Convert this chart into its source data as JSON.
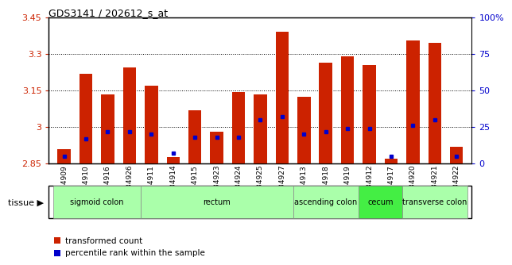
{
  "title": "GDS3141 / 202612_s_at",
  "samples": [
    "GSM234909",
    "GSM234910",
    "GSM234916",
    "GSM234926",
    "GSM234911",
    "GSM234914",
    "GSM234915",
    "GSM234923",
    "GSM234924",
    "GSM234925",
    "GSM234927",
    "GSM234913",
    "GSM234918",
    "GSM234919",
    "GSM234912",
    "GSM234917",
    "GSM234920",
    "GSM234921",
    "GSM234922"
  ],
  "transformed_count": [
    2.91,
    3.22,
    3.135,
    3.245,
    3.17,
    2.875,
    3.07,
    2.98,
    3.145,
    3.135,
    3.39,
    3.125,
    3.265,
    3.29,
    3.255,
    2.87,
    3.355,
    3.345,
    2.92
  ],
  "percentile_rank": [
    5,
    17,
    22,
    22,
    20,
    7,
    18,
    18,
    18,
    30,
    32,
    20,
    22,
    24,
    24,
    5,
    26,
    30,
    5
  ],
  "tissue_groups": [
    {
      "label": "sigmoid colon",
      "start": 0,
      "end": 3,
      "color": "#aaffaa"
    },
    {
      "label": "rectum",
      "start": 4,
      "end": 10,
      "color": "#aaffaa"
    },
    {
      "label": "ascending colon",
      "start": 11,
      "end": 13,
      "color": "#aaffaa"
    },
    {
      "label": "cecum",
      "start": 14,
      "end": 15,
      "color": "#44ee44"
    },
    {
      "label": "transverse colon",
      "start": 16,
      "end": 18,
      "color": "#aaffaa"
    }
  ],
  "ymin": 2.85,
  "ymax": 3.45,
  "yticks": [
    2.85,
    3.0,
    3.15,
    3.3,
    3.45
  ],
  "ytick_labels": [
    "2.85",
    "3",
    "3.15",
    "3.3",
    "3.45"
  ],
  "right_yticks": [
    0,
    25,
    50,
    75,
    100
  ],
  "bar_color": "#cc2200",
  "dot_color": "#0000cc",
  "bar_width": 0.6,
  "background_color": "#ffffff",
  "plot_bg_color": "#ffffff"
}
